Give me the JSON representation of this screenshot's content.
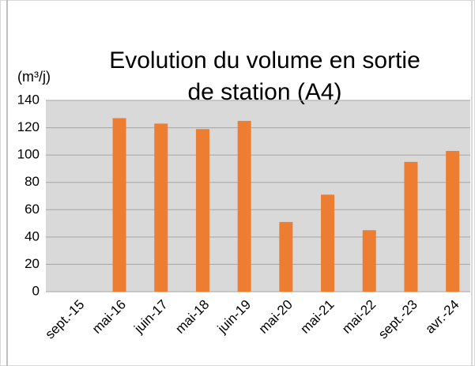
{
  "chart_data": {
    "type": "bar",
    "title": [
      "Evolution du volume en sortie",
      "de station (A4)"
    ],
    "y_label": "(m³/j)",
    "categories": [
      "sept.-15",
      "mai-16",
      "juin-17",
      "mai-18",
      "juin-19",
      "mai-20",
      "mai-21",
      "mai-22",
      "sept.-23",
      "avr.-24"
    ],
    "values": [
      null,
      127,
      123,
      119,
      125,
      51,
      71,
      45,
      95,
      103
    ],
    "color": "#ed7d31",
    "ylim": [
      0,
      140
    ],
    "yticks": [
      0,
      20,
      40,
      60,
      80,
      100,
      120,
      140
    ],
    "grid": true
  }
}
